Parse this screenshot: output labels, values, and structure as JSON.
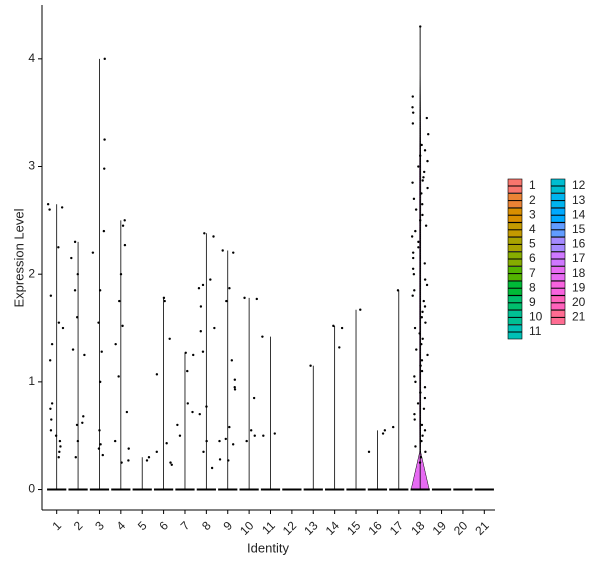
{
  "chart_data": {
    "type": "violin",
    "x_label": "Identity",
    "y_label": "Expression Level",
    "ylim": [
      -0.19,
      4.5
    ],
    "yticks": [
      0,
      1,
      2,
      3,
      4
    ],
    "series": [
      {
        "name": "1",
        "color": "#F8766D",
        "max": 2.65,
        "values": [
          2.65,
          2.62,
          2.6,
          2.25,
          1.8,
          1.55,
          1.5,
          1.35,
          1.2,
          0.8,
          0.75,
          0.65,
          0.55,
          0.5,
          0.45,
          0.4,
          0.35,
          0.3
        ]
      },
      {
        "name": "2",
        "color": "#EB8335",
        "max": 2.3,
        "values": [
          2.3,
          2.15,
          2.0,
          1.85,
          1.6,
          1.3,
          1.25,
          0.68,
          0.62,
          0.6,
          0.45,
          0.3
        ]
      },
      {
        "name": "3",
        "color": "#DA8F00",
        "max": 4.0,
        "values": [
          4.0,
          3.25,
          2.98,
          2.4,
          2.2,
          1.85,
          1.55,
          1.28,
          1.0,
          0.55,
          0.42,
          0.38,
          0.32
        ]
      },
      {
        "name": "4",
        "color": "#C49A00",
        "max": 2.5,
        "values": [
          2.5,
          2.45,
          2.27,
          2.0,
          1.75,
          1.52,
          1.35,
          1.05,
          0.72,
          0.45,
          0.38,
          0.27,
          0.25
        ]
      },
      {
        "name": "5",
        "color": "#A9A400",
        "max": 0.3,
        "values": [
          0.3,
          0.27
        ]
      },
      {
        "name": "6",
        "color": "#86AC00",
        "max": 1.78,
        "values": [
          1.78,
          1.75,
          1.4,
          1.07,
          0.43,
          0.35,
          0.25,
          0.23
        ]
      },
      {
        "name": "7",
        "color": "#53B400",
        "max": 1.27,
        "values": [
          1.27,
          1.25,
          1.1,
          0.8,
          0.72,
          0.6,
          0.5
        ]
      },
      {
        "name": "8",
        "color": "#00BA38",
        "max": 2.38,
        "values": [
          2.38,
          2.35,
          1.95,
          1.9,
          1.87,
          1.7,
          1.5,
          1.47,
          1.28,
          0.77,
          0.7,
          0.45,
          0.35,
          0.2
        ]
      },
      {
        "name": "9",
        "color": "#00BE6D",
        "max": 2.22,
        "values": [
          2.22,
          2.2,
          1.87,
          1.75,
          1.2,
          1.02,
          0.95,
          0.93,
          0.58,
          0.47,
          0.45,
          0.42,
          0.28,
          0.27
        ]
      },
      {
        "name": "10",
        "color": "#00C094",
        "max": 1.78,
        "values": [
          1.78,
          1.77,
          0.85,
          0.55,
          0.5,
          0.45
        ]
      },
      {
        "name": "11",
        "color": "#00C0B5",
        "max": 1.42,
        "values": [
          1.42,
          0.52,
          0.5
        ]
      },
      {
        "name": "12",
        "color": "#00BDD1",
        "max": 0,
        "values": []
      },
      {
        "name": "13",
        "color": "#00B4EF",
        "max": 1.15,
        "values": [
          1.15
        ]
      },
      {
        "name": "14",
        "color": "#00A9FF",
        "max": 1.52,
        "values": [
          1.52,
          1.5,
          1.32
        ]
      },
      {
        "name": "15",
        "color": "#619CFF",
        "max": 1.67,
        "values": [
          1.67
        ]
      },
      {
        "name": "16",
        "color": "#A58AFF",
        "max": 0.55,
        "values": [
          0.55,
          0.52,
          0.35
        ]
      },
      {
        "name": "17",
        "color": "#CF78FF",
        "max": 1.85,
        "values": [
          1.85,
          0.58
        ]
      },
      {
        "name": "18",
        "color": "#E76BF3",
        "max": 4.3,
        "values": [
          4.3,
          3.65,
          3.55,
          3.5,
          3.45,
          3.4,
          3.3,
          3.2,
          3.15,
          3.1,
          3.05,
          3.0,
          2.95,
          2.9,
          2.87,
          2.85,
          2.8,
          2.75,
          2.7,
          2.65,
          2.6,
          2.55,
          2.5,
          2.45,
          2.4,
          2.35,
          2.3,
          2.25,
          2.2,
          2.15,
          2.1,
          2.05,
          2.0,
          1.95,
          1.9,
          1.85,
          1.8,
          1.75,
          1.7,
          1.65,
          1.6,
          1.55,
          1.5,
          1.45,
          1.4,
          1.35,
          1.3,
          1.25,
          1.2,
          1.15,
          1.1,
          1.05,
          1.0,
          0.95,
          0.9,
          0.85,
          0.8,
          0.75,
          0.7,
          0.65,
          0.6,
          0.55,
          0.5,
          0.45,
          0.4,
          0.35,
          0.3,
          0.25
        ]
      },
      {
        "name": "19",
        "color": "#F863DF",
        "max": 0,
        "values": []
      },
      {
        "name": "20",
        "color": "#FF62BC",
        "max": 0,
        "values": []
      },
      {
        "name": "21",
        "color": "#FF6C92",
        "max": 0,
        "values": []
      }
    ]
  }
}
